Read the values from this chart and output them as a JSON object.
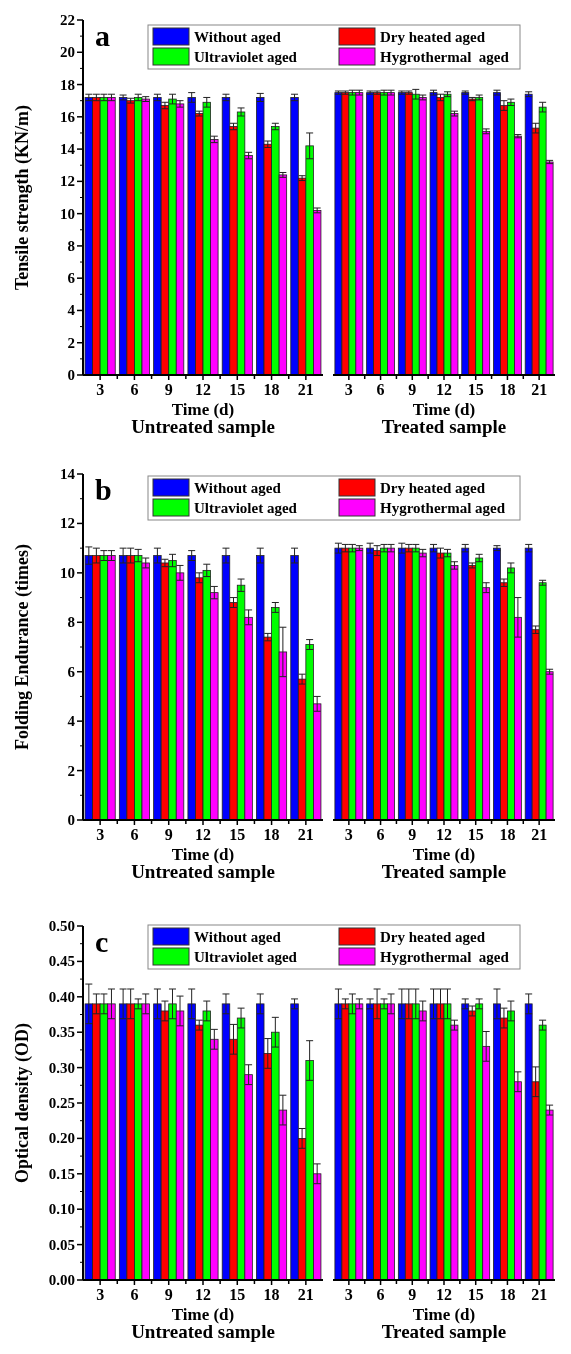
{
  "chart_data": [
    {
      "type": "bar",
      "title": "a",
      "ylabel": "Tensile strength (KN/m)",
      "xlabel": "Time (d)",
      "annotations": [
        "Untreated sample"
      ],
      "categories": [
        "3",
        "6",
        "9",
        "12",
        "15",
        "18",
        "21"
      ],
      "ylim": [
        0,
        22
      ],
      "yticks": [
        0,
        2,
        4,
        6,
        8,
        10,
        12,
        14,
        16,
        18,
        20,
        22
      ],
      "legend": "top",
      "series": [
        {
          "name": "Without aged",
          "color": "#0000ff",
          "values": [
            17.2,
            17.2,
            17.2,
            17.2,
            17.2,
            17.2,
            17.2
          ],
          "errors": [
            0.2,
            0.15,
            0.2,
            0.3,
            0.2,
            0.25,
            0.2
          ]
        },
        {
          "name": "Dry heated aged",
          "color": "#ff0000",
          "values": [
            17.2,
            17.0,
            16.7,
            16.2,
            15.4,
            14.3,
            12.2
          ],
          "errors": [
            0.2,
            0.15,
            0.2,
            0.15,
            0.2,
            0.2,
            0.15
          ]
        },
        {
          "name": "Ultraviolet aged",
          "color": "#00ff00",
          "values": [
            17.2,
            17.2,
            17.1,
            16.9,
            16.3,
            15.4,
            14.2
          ],
          "errors": [
            0.2,
            0.2,
            0.3,
            0.3,
            0.25,
            0.2,
            0.8
          ]
        },
        {
          "name": "Hygrothermal  aged",
          "color": "#ff00ff",
          "values": [
            17.2,
            17.1,
            16.8,
            14.6,
            13.6,
            12.4,
            10.2
          ],
          "errors": [
            0.2,
            0.15,
            0.2,
            0.2,
            0.2,
            0.15,
            0.15
          ]
        }
      ]
    },
    {
      "type": "bar",
      "xlabel": "Time (d)",
      "annotations": [
        "Treated sample"
      ],
      "categories": [
        "3",
        "6",
        "9",
        "12",
        "15",
        "18",
        "21"
      ],
      "ylim": [
        0,
        22
      ],
      "tick_labels": "x",
      "series": [
        {
          "color": "#0000ff",
          "values": [
            17.5,
            17.5,
            17.5,
            17.5,
            17.5,
            17.5,
            17.4
          ],
          "errors": [
            0.1,
            0.1,
            0.1,
            0.15,
            0.1,
            0.15,
            0.15
          ]
        },
        {
          "color": "#ff0000",
          "values": [
            17.5,
            17.5,
            17.5,
            17.2,
            17.1,
            16.7,
            15.3
          ],
          "errors": [
            0.1,
            0.1,
            0.1,
            0.2,
            0.1,
            0.3,
            0.3
          ]
        },
        {
          "color": "#00ff00",
          "values": [
            17.5,
            17.5,
            17.4,
            17.4,
            17.2,
            16.9,
            16.6
          ],
          "errors": [
            0.15,
            0.15,
            0.3,
            0.15,
            0.15,
            0.2,
            0.3
          ]
        },
        {
          "color": "#ff00ff",
          "values": [
            17.5,
            17.5,
            17.2,
            16.2,
            15.1,
            14.8,
            13.2
          ],
          "errors": [
            0.15,
            0.15,
            0.15,
            0.15,
            0.15,
            0.1,
            0.1
          ]
        }
      ]
    },
    {
      "type": "bar",
      "title": "b",
      "ylabel": "Folding Endurance (times)",
      "xlabel": "Time (d)",
      "annotations": [
        "Untreated sample"
      ],
      "categories": [
        "3",
        "6",
        "9",
        "12",
        "15",
        "18",
        "21"
      ],
      "ylim": [
        0,
        14
      ],
      "yticks": [
        0,
        2,
        4,
        6,
        8,
        10,
        12,
        14
      ],
      "legend": "top",
      "series": [
        {
          "name": "Without aged",
          "color": "#0000ff",
          "values": [
            10.7,
            10.7,
            10.7,
            10.7,
            10.7,
            10.7,
            10.7
          ],
          "errors": [
            0.35,
            0.3,
            0.3,
            0.2,
            0.3,
            0.3,
            0.3
          ]
        },
        {
          "name": "Dry heated aged",
          "color": "#ff0000",
          "values": [
            10.7,
            10.7,
            10.4,
            9.8,
            8.8,
            7.4,
            5.7
          ],
          "errors": [
            0.3,
            0.3,
            0.15,
            0.2,
            0.2,
            0.15,
            0.2
          ]
        },
        {
          "name": "Ultraviolet aged",
          "color": "#00ff00",
          "values": [
            10.7,
            10.7,
            10.5,
            10.1,
            9.5,
            8.6,
            7.1
          ],
          "errors": [
            0.2,
            0.25,
            0.25,
            0.25,
            0.25,
            0.2,
            0.2
          ]
        },
        {
          "name": "Hygrothermal aged",
          "color": "#ff00ff",
          "values": [
            10.7,
            10.4,
            10.0,
            9.2,
            8.2,
            6.8,
            4.7
          ],
          "errors": [
            0.2,
            0.2,
            0.3,
            0.25,
            0.3,
            1.0,
            0.3
          ]
        }
      ]
    },
    {
      "type": "bar",
      "xlabel": "Time (d)",
      "annotations": [
        "Treated sample"
      ],
      "categories": [
        "3",
        "6",
        "9",
        "12",
        "15",
        "18",
        "21"
      ],
      "ylim": [
        0,
        14
      ],
      "tick_labels": "x",
      "series": [
        {
          "color": "#0000ff",
          "values": [
            11.0,
            11.0,
            11.0,
            11.0,
            11.0,
            11.0,
            11.0
          ],
          "errors": [
            0.2,
            0.2,
            0.2,
            0.15,
            0.15,
            0.1,
            0.15
          ]
        },
        {
          "color": "#ff0000",
          "values": [
            11.0,
            10.9,
            11.0,
            10.8,
            10.3,
            9.6,
            7.7
          ],
          "errors": [
            0.15,
            0.2,
            0.15,
            0.2,
            0.1,
            0.15,
            0.15
          ]
        },
        {
          "color": "#00ff00",
          "values": [
            11.0,
            11.0,
            11.0,
            10.8,
            10.6,
            10.2,
            9.6
          ],
          "errors": [
            0.15,
            0.15,
            0.15,
            0.15,
            0.15,
            0.2,
            0.1
          ]
        },
        {
          "color": "#ff00ff",
          "values": [
            11.0,
            11.0,
            10.8,
            10.3,
            9.4,
            8.2,
            6.0
          ],
          "errors": [
            0.1,
            0.15,
            0.15,
            0.15,
            0.2,
            0.8,
            0.1
          ]
        }
      ]
    },
    {
      "type": "bar",
      "title": "c",
      "ylabel": "Optical density (OD)",
      "xlabel": "Time (d)",
      "annotations": [
        "Untreated sample"
      ],
      "categories": [
        "3",
        "6",
        "9",
        "12",
        "15",
        "18",
        "21"
      ],
      "ylim": [
        0,
        0.5
      ],
      "yticks": [
        {
          "value": 0,
          "label": "0.00"
        },
        {
          "value": 0.05,
          "label": "0.05"
        },
        {
          "value": 0.1,
          "label": "0.10"
        },
        {
          "value": 0.15,
          "label": "0.15"
        },
        {
          "value": 0.2,
          "label": "0.20"
        },
        {
          "value": 0.25,
          "label": "0.25"
        },
        {
          "value": 0.3,
          "label": "0.30"
        },
        {
          "value": 0.35,
          "label": "0.35"
        },
        {
          "value": 0.4,
          "label": "0.40"
        },
        {
          "value": 0.45,
          "label": "0.45"
        },
        {
          "value": 0.5,
          "label": "0.50"
        }
      ],
      "legend": "top",
      "series": [
        {
          "name": "Without aged",
          "color": "#0000ff",
          "values": [
            0.39,
            0.39,
            0.39,
            0.39,
            0.39,
            0.39,
            0.39
          ],
          "errors": [
            0.028,
            0.021,
            0.021,
            0.021,
            0.014,
            0.014,
            0.007
          ]
        },
        {
          "name": "Dry heated aged",
          "color": "#ff0000",
          "values": [
            0.39,
            0.39,
            0.38,
            0.36,
            0.34,
            0.32,
            0.2
          ],
          "errors": [
            0.014,
            0.021,
            0.014,
            0.007,
            0.021,
            0.021,
            0.014
          ]
        },
        {
          "name": "Ultraviolet aged",
          "color": "#00ff00",
          "values": [
            0.39,
            0.39,
            0.39,
            0.38,
            0.37,
            0.35,
            0.31
          ],
          "errors": [
            0.014,
            0.007,
            0.021,
            0.014,
            0.014,
            0.021,
            0.028
          ]
        },
        {
          "name": "Hygrothermal  aged",
          "color": "#ff00ff",
          "values": [
            0.39,
            0.39,
            0.38,
            0.34,
            0.29,
            0.24,
            0.15
          ],
          "errors": [
            0.021,
            0.014,
            0.021,
            0.014,
            0.014,
            0.021,
            0.014
          ]
        }
      ]
    },
    {
      "type": "bar",
      "xlabel": "Time (d)",
      "annotations": [
        "Treated sample"
      ],
      "categories": [
        "3",
        "6",
        "9",
        "12",
        "15",
        "18",
        "21"
      ],
      "ylim": [
        0,
        0.5
      ],
      "tick_labels": "x",
      "series": [
        {
          "color": "#0000ff",
          "values": [
            0.39,
            0.39,
            0.39,
            0.39,
            0.39,
            0.39,
            0.39
          ],
          "errors": [
            0.021,
            0.007,
            0.021,
            0.021,
            0.007,
            0.021,
            0.014
          ]
        },
        {
          "color": "#ff0000",
          "values": [
            0.39,
            0.39,
            0.39,
            0.39,
            0.38,
            0.37,
            0.28
          ],
          "errors": [
            0.007,
            0.021,
            0.021,
            0.021,
            0.007,
            0.014,
            0.021
          ]
        },
        {
          "color": "#00ff00",
          "values": [
            0.39,
            0.39,
            0.39,
            0.39,
            0.39,
            0.38,
            0.36
          ],
          "errors": [
            0.014,
            0.007,
            0.021,
            0.021,
            0.007,
            0.014,
            0.007
          ]
        },
        {
          "color": "#ff00ff",
          "values": [
            0.39,
            0.39,
            0.38,
            0.36,
            0.33,
            0.28,
            0.24
          ],
          "errors": [
            0.007,
            0.014,
            0.014,
            0.007,
            0.021,
            0.014,
            0.007
          ]
        }
      ]
    }
  ]
}
